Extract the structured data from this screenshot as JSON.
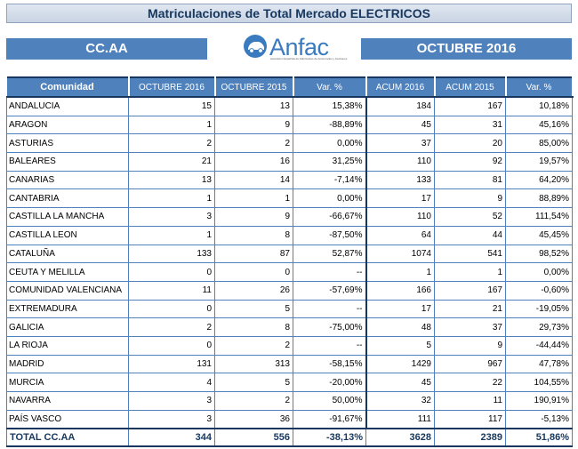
{
  "title": "Matriculaciones de Total Mercado ELECTRICOS",
  "region_label": "CC.AA",
  "period_label": "OCTUBRE 2016",
  "logo_text": "Anfac",
  "logo_subtitle": "Asociación Española de Fabricantes de Automóviles y Camiones",
  "headers": [
    "Comunidad",
    "OCTUBRE  2016",
    "OCTUBRE  2015",
    "Var. %",
    "ACUM 2016",
    "ACUM 2015",
    "Var. %"
  ],
  "rows": [
    [
      "ANDALUCIA",
      "15",
      "13",
      "15,38%",
      "184",
      "167",
      "10,18%"
    ],
    [
      "ARAGON",
      "1",
      "9",
      "-88,89%",
      "45",
      "31",
      "45,16%"
    ],
    [
      "ASTURIAS",
      "2",
      "2",
      "0,00%",
      "37",
      "20",
      "85,00%"
    ],
    [
      "BALEARES",
      "21",
      "16",
      "31,25%",
      "110",
      "92",
      "19,57%"
    ],
    [
      "CANARIAS",
      "13",
      "14",
      "-7,14%",
      "133",
      "81",
      "64,20%"
    ],
    [
      "CANTABRIA",
      "1",
      "1",
      "0,00%",
      "17",
      "9",
      "88,89%"
    ],
    [
      "CASTILLA LA MANCHA",
      "3",
      "9",
      "-66,67%",
      "110",
      "52",
      "111,54%"
    ],
    [
      "CASTILLA LEON",
      "1",
      "8",
      "-87,50%",
      "64",
      "44",
      "45,45%"
    ],
    [
      "CATALUÑA",
      "133",
      "87",
      "52,87%",
      "1074",
      "541",
      "98,52%"
    ],
    [
      "CEUTA Y MELILLA",
      "0",
      "0",
      "--",
      "1",
      "1",
      "0,00%"
    ],
    [
      "COMUNIDAD VALENCIANA",
      "11",
      "26",
      "-57,69%",
      "166",
      "167",
      "-0,60%"
    ],
    [
      "EXTREMADURA",
      "0",
      "5",
      "--",
      "17",
      "21",
      "-19,05%"
    ],
    [
      "GALICIA",
      "2",
      "8",
      "-75,00%",
      "48",
      "37",
      "29,73%"
    ],
    [
      "LA RIOJA",
      "0",
      "2",
      "--",
      "5",
      "9",
      "-44,44%"
    ],
    [
      "MADRID",
      "131",
      "313",
      "-58,15%",
      "1429",
      "967",
      "47,78%"
    ],
    [
      "MURCIA",
      "4",
      "5",
      "-20,00%",
      "45",
      "22",
      "104,55%"
    ],
    [
      "NAVARRA",
      "3",
      "2",
      "50,00%",
      "32",
      "11",
      "190,91%"
    ],
    [
      "PAÍS VASCO",
      "3",
      "36",
      "-91,67%",
      "111",
      "117",
      "-5,13%"
    ]
  ],
  "total": [
    "TOTAL CC.AA",
    "344",
    "556",
    "-38,13%",
    "3628",
    "2389",
    "51,86%"
  ],
  "colors": {
    "accent": "#4f81bd",
    "dark": "#17375e",
    "logo": "#3a7bbf"
  }
}
